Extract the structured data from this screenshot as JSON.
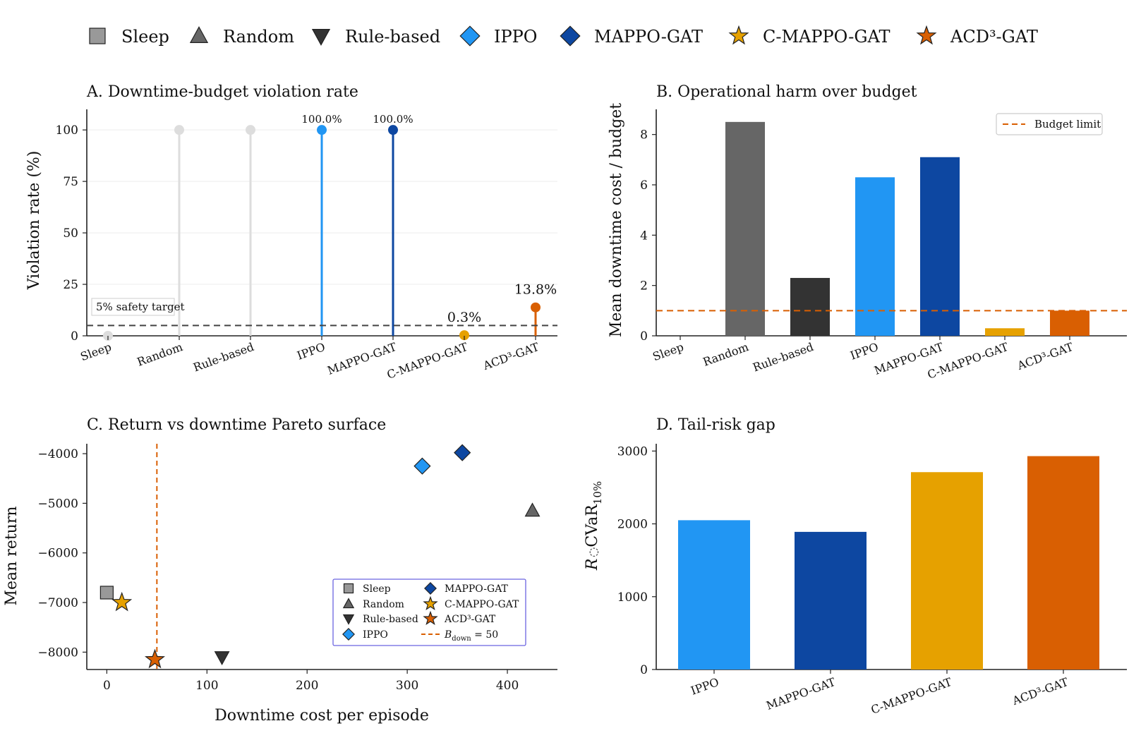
{
  "legend": [
    {
      "label": "Sleep",
      "color": "#999999",
      "icon": "square-icon"
    },
    {
      "label": "Random",
      "color": "#666666",
      "icon": "triangle-up-icon"
    },
    {
      "label": "Rule-based",
      "color": "#333333",
      "icon": "triangle-down-icon"
    },
    {
      "label": "IPPO",
      "color": "#2196f3",
      "icon": "diamond-icon"
    },
    {
      "label": "MAPPO-GAT",
      "color": "#0d47a1",
      "icon": "diamond-icon"
    },
    {
      "label": "C-MAPPO-GAT",
      "color": "#e6a100",
      "icon": "star-icon"
    },
    {
      "label": "ACD³-GAT",
      "color": "#d95f02",
      "icon": "star-icon"
    }
  ],
  "colors": {
    "Sleep": "#999999",
    "Random": "#666666",
    "Rule-based": "#333333",
    "IPPO": "#2196f3",
    "MAPPO-GAT": "#0d47a1",
    "C-MAPPO-GAT": "#e6a100",
    "ACD³-GAT": "#d95f02",
    "faded": "#dddddd",
    "budget": "#d95f02",
    "target": "#444444"
  },
  "chart_data": [
    {
      "id": "A",
      "type": "lollipop",
      "title": "A. Downtime-budget violation rate",
      "ylabel": "Violation rate (%)",
      "ylim": [
        0,
        110
      ],
      "yticks": [
        0,
        25,
        50,
        75,
        100
      ],
      "categories": [
        "Sleep",
        "Random",
        "Rule-based",
        "IPPO",
        "MAPPO-GAT",
        "C-MAPPO-GAT",
        "ACD³-GAT"
      ],
      "values": [
        0,
        100,
        100,
        100,
        100,
        0.3,
        13.8
      ],
      "highlighted": [
        false,
        false,
        false,
        true,
        true,
        true,
        true
      ],
      "value_labels": [
        "",
        "",
        "",
        "100.0%",
        "100.0%",
        "0.3%",
        "13.8%"
      ],
      "reference_line": {
        "value": 5,
        "label": "5% safety target"
      },
      "grid": true
    },
    {
      "id": "B",
      "type": "bar",
      "title": "B. Operational harm over budget",
      "ylabel": "Mean downtime cost / budget",
      "ylim": [
        0,
        9
      ],
      "yticks": [
        0,
        2,
        4,
        6,
        8
      ],
      "categories": [
        "Sleep",
        "Random",
        "Rule-based",
        "IPPO",
        "MAPPO-GAT",
        "C-MAPPO-GAT",
        "ACD³-GAT"
      ],
      "values": [
        0,
        8.5,
        2.3,
        6.3,
        7.1,
        0.3,
        1.0
      ],
      "reference_line": {
        "value": 1,
        "label": "Budget limit"
      },
      "legend_position": "top-right"
    },
    {
      "id": "C",
      "type": "scatter",
      "title": "C. Return vs downtime Pareto surface",
      "xlabel": "Downtime cost per episode",
      "ylabel": "Mean return",
      "xlim": [
        -20,
        450
      ],
      "ylim": [
        -8350,
        -3800
      ],
      "xticks": [
        0,
        100,
        200,
        300,
        400
      ],
      "yticks": [
        -8000,
        -7000,
        -6000,
        -5000,
        -4000
      ],
      "series": [
        {
          "name": "Sleep",
          "marker": "square",
          "x": 0,
          "y": -6800
        },
        {
          "name": "Random",
          "marker": "triangle-up",
          "x": 425,
          "y": -5150
        },
        {
          "name": "Rule-based",
          "marker": "triangle-down",
          "x": 115,
          "y": -8100
        },
        {
          "name": "IPPO",
          "marker": "diamond",
          "x": 315,
          "y": -4250
        },
        {
          "name": "MAPPO-GAT",
          "marker": "diamond",
          "x": 355,
          "y": -3980
        },
        {
          "name": "C-MAPPO-GAT",
          "marker": "star",
          "x": 15,
          "y": -7000
        },
        {
          "name": "ACD³-GAT",
          "marker": "star",
          "x": 48,
          "y": -8150
        }
      ],
      "vline": {
        "value": 50,
        "label_main": "B",
        "label_sub": "down",
        "label_rest": " = 50"
      },
      "legend_position": "lower-right"
    },
    {
      "id": "D",
      "type": "bar",
      "title": "D. Tail-risk gap",
      "ylabel_main": "R",
      "ylabel_mid": "CVaR",
      "ylabel_sub": "10%",
      "ylim": [
        0,
        3100
      ],
      "yticks": [
        0,
        1000,
        2000,
        3000
      ],
      "categories": [
        "IPPO",
        "MAPPO-GAT",
        "C-MAPPO-GAT",
        "ACD³-GAT"
      ],
      "values": [
        2050,
        1890,
        2710,
        2930
      ]
    }
  ]
}
